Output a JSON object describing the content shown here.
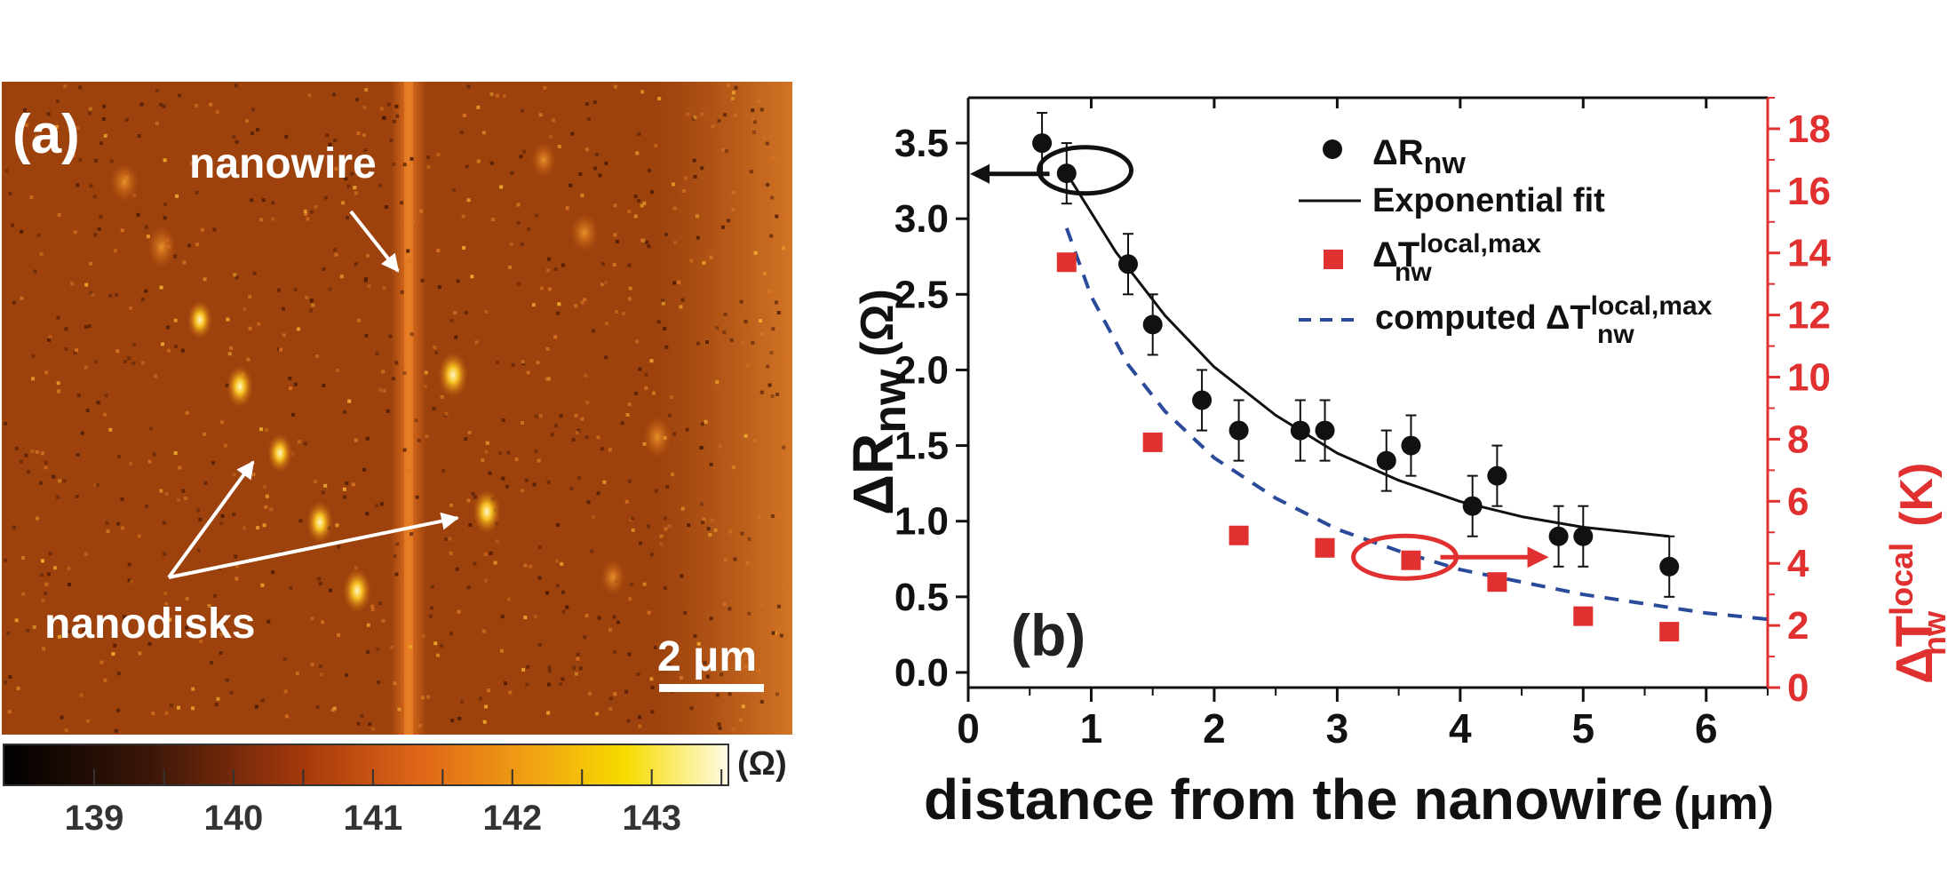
{
  "panel_a": {
    "label": "(a)",
    "annotations": {
      "nanowire": "nanowire",
      "nanodisks": "nanodisks"
    },
    "scale_bar": {
      "label": "2 μm"
    },
    "colorbar": {
      "unit": "(Ω)",
      "tick_labels": [
        "139",
        "140",
        "141",
        "142",
        "143"
      ],
      "range": [
        138.35,
        143.55
      ],
      "tick_values": [
        139,
        140,
        141,
        142,
        143
      ]
    }
  },
  "chart_data": {
    "type": "scatter",
    "panel_label": "(b)",
    "xlabel": "distance from the nanowire",
    "xlabel_unit": "(μm)",
    "ylabel_left": {
      "main": "ΔR",
      "sub": "nw",
      "unit": "(Ω)"
    },
    "ylabel_right": {
      "main": "ΔT",
      "sup": "local",
      "sub": "nw",
      "unit": "(K)"
    },
    "xlim": [
      0,
      6.5
    ],
    "ylim_left": [
      -0.1,
      3.8
    ],
    "ylim_right": [
      0,
      19
    ],
    "x_ticks": [
      "0",
      "1",
      "2",
      "3",
      "4",
      "5",
      "6"
    ],
    "x_tick_values": [
      0,
      1,
      2,
      3,
      4,
      5,
      6
    ],
    "y_left_ticks": [
      "0.0",
      "0.5",
      "1.0",
      "1.5",
      "2.0",
      "2.5",
      "3.0",
      "3.5"
    ],
    "y_left_tick_values": [
      0,
      0.5,
      1.0,
      1.5,
      2.0,
      2.5,
      3.0,
      3.5
    ],
    "y_right_ticks": [
      "0",
      "2",
      "4",
      "6",
      "8",
      "10",
      "12",
      "14",
      "16",
      "18"
    ],
    "y_right_tick_values": [
      0,
      2,
      4,
      6,
      8,
      10,
      12,
      14,
      16,
      18
    ],
    "legend": {
      "dR": {
        "main": "ΔR",
        "sub": "nw"
      },
      "fit": "Exponential fit",
      "dT": {
        "main": "ΔT",
        "sup": "local,max",
        "sub": "nw"
      },
      "computed": {
        "prefix": "computed ΔT",
        "sup": "local,max",
        "sub": "nw"
      }
    },
    "series": [
      {
        "name": "ΔRnw",
        "axis": "left",
        "marker": "circle",
        "color": "#111111",
        "x": [
          0.6,
          0.8,
          1.3,
          1.5,
          1.9,
          2.2,
          2.7,
          2.9,
          3.4,
          3.6,
          4.1,
          4.3,
          4.8,
          5.0,
          5.7
        ],
        "y": [
          3.5,
          3.3,
          2.7,
          2.3,
          1.8,
          1.6,
          1.6,
          1.6,
          1.4,
          1.5,
          1.1,
          1.3,
          0.9,
          0.9,
          0.7
        ],
        "err": [
          0.2,
          0.2,
          0.2,
          0.2,
          0.2,
          0.2,
          0.2,
          0.2,
          0.2,
          0.2,
          0.2,
          0.2,
          0.2,
          0.2,
          0.2
        ]
      },
      {
        "name": "Exponential fit",
        "axis": "left",
        "style": "solid",
        "color": "#111111",
        "x": [
          0.8,
          1.2,
          1.6,
          2.0,
          2.5,
          3.0,
          3.5,
          4.0,
          4.5,
          5.0,
          5.7
        ],
        "y": [
          3.3,
          2.78,
          2.36,
          2.02,
          1.7,
          1.45,
          1.27,
          1.13,
          1.03,
          0.96,
          0.9
        ]
      },
      {
        "name": "ΔTnw local,max",
        "axis": "right",
        "marker": "square",
        "color": "#e03030",
        "x": [
          0.8,
          1.5,
          2.2,
          2.9,
          3.6,
          4.3,
          5.0,
          5.7
        ],
        "y": [
          13.7,
          7.9,
          4.9,
          4.5,
          4.1,
          3.4,
          2.3,
          1.8
        ]
      },
      {
        "name": "computed ΔTnw local,max",
        "axis": "right",
        "style": "dashed",
        "color": "#2a4a9a",
        "x": [
          0.8,
          1.0,
          1.3,
          1.6,
          2.0,
          2.5,
          3.0,
          3.5,
          4.0,
          4.5,
          5.0,
          5.5,
          6.0,
          6.5
        ],
        "y": [
          14.8,
          12.6,
          10.4,
          8.9,
          7.4,
          6.1,
          5.1,
          4.4,
          3.8,
          3.4,
          3.0,
          2.7,
          2.4,
          2.2
        ]
      }
    ],
    "axis_colors": {
      "left": "#111111",
      "right": "#e03030"
    }
  }
}
